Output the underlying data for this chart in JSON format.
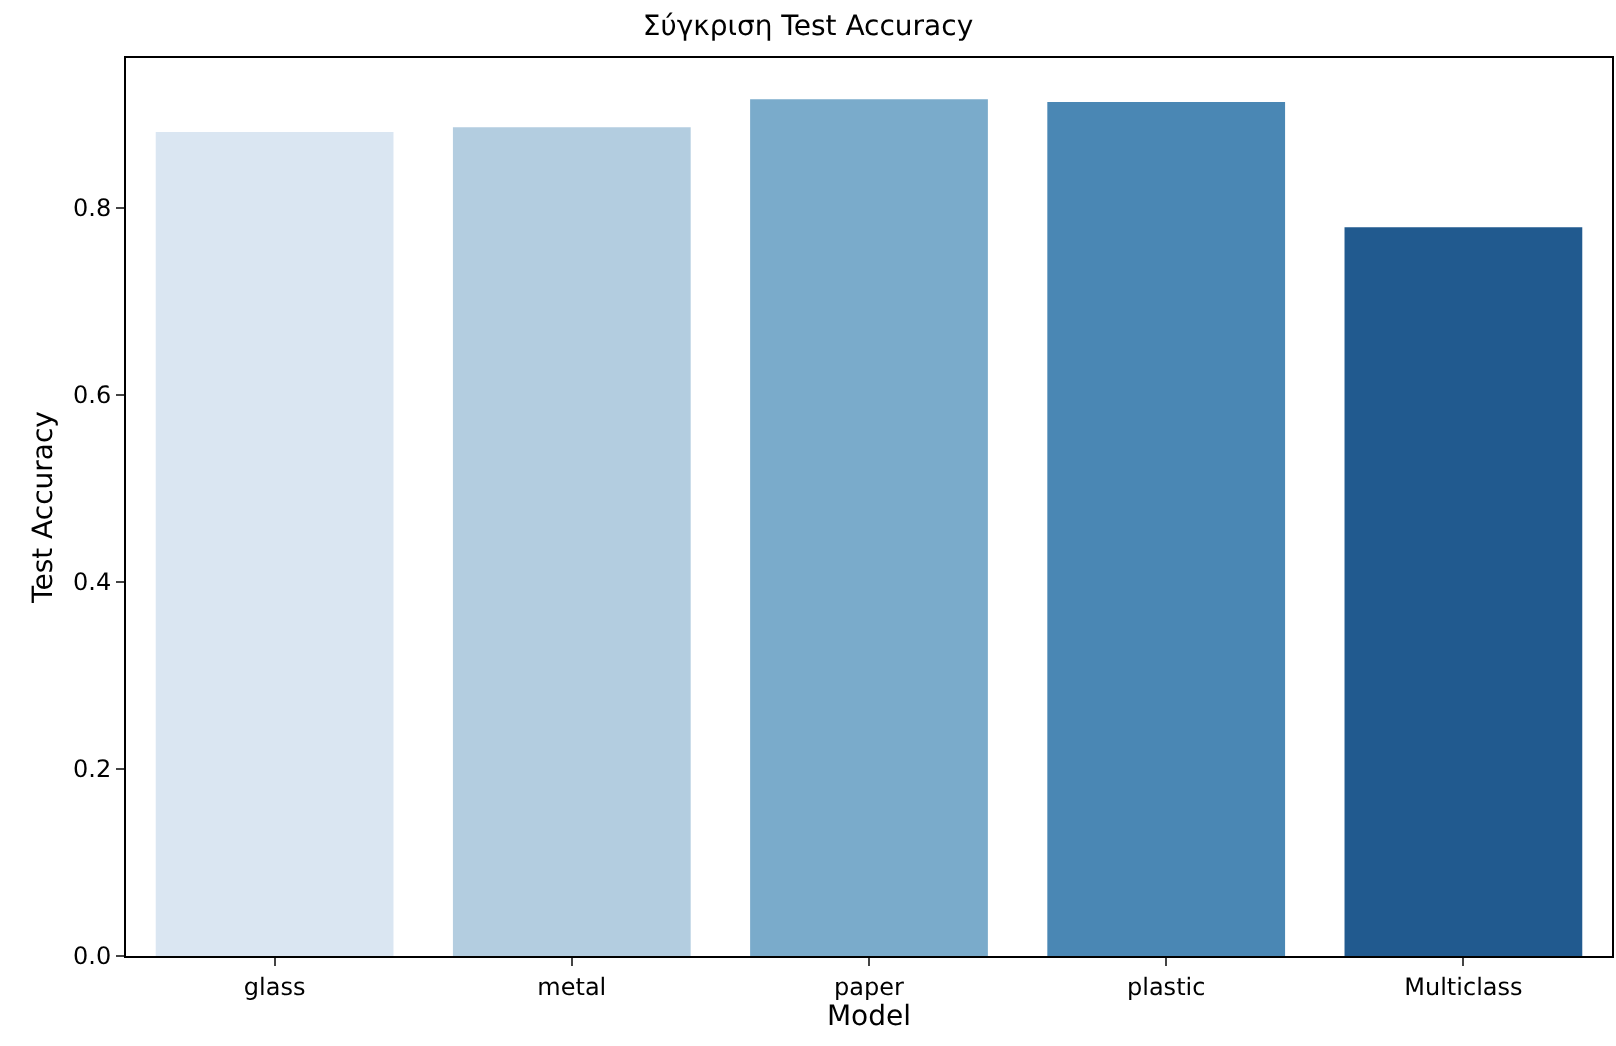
{
  "chart_data": {
    "type": "bar",
    "title": "Σύγκριση Test Accuracy",
    "xlabel": "Model",
    "ylabel": "Test Accuracy",
    "categories": [
      "glass",
      "metal",
      "paper",
      "plastic",
      "Multiclass"
    ],
    "values": [
      0.881,
      0.886,
      0.916,
      0.913,
      0.779
    ],
    "colors": [
      "#dae6f2",
      "#b3cde0",
      "#7aabcb",
      "#4a87b4",
      "#215a8f"
    ],
    "ylim": [
      0,
      0.96
    ],
    "yticks": [
      {
        "value": 0,
        "label": "0.0"
      },
      0.2,
      0.4,
      0.6,
      0.8
    ],
    "grid": false
  }
}
